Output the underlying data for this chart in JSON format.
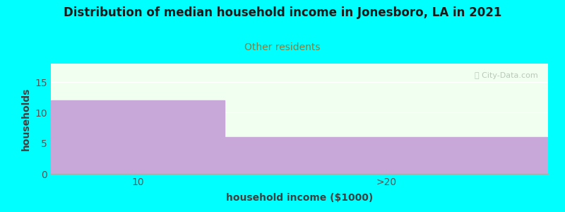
{
  "title": "Distribution of median household income in Jonesboro, LA in 2021",
  "subtitle": "Other residents",
  "xlabel": "household income ($1000)",
  "ylabel": "households",
  "background_color": "#00FFFF",
  "plot_bg_color": "#F0FFF0",
  "bar_color": "#C8A8D8",
  "categories": [
    "10",
    ">20"
  ],
  "values": [
    12,
    6
  ],
  "ylim": [
    0,
    18
  ],
  "yticks": [
    0,
    5,
    10,
    15
  ],
  "title_color": "#1a1a1a",
  "subtitle_color": "#808040",
  "axis_label_color": "#404040",
  "tick_color": "#555555",
  "watermark": "ⓘ City-Data.com",
  "watermark_color": "#B0C0B0",
  "grid_color": "#FFFFFF",
  "figsize": [
    8.0,
    3.0
  ],
  "dpi": 100
}
